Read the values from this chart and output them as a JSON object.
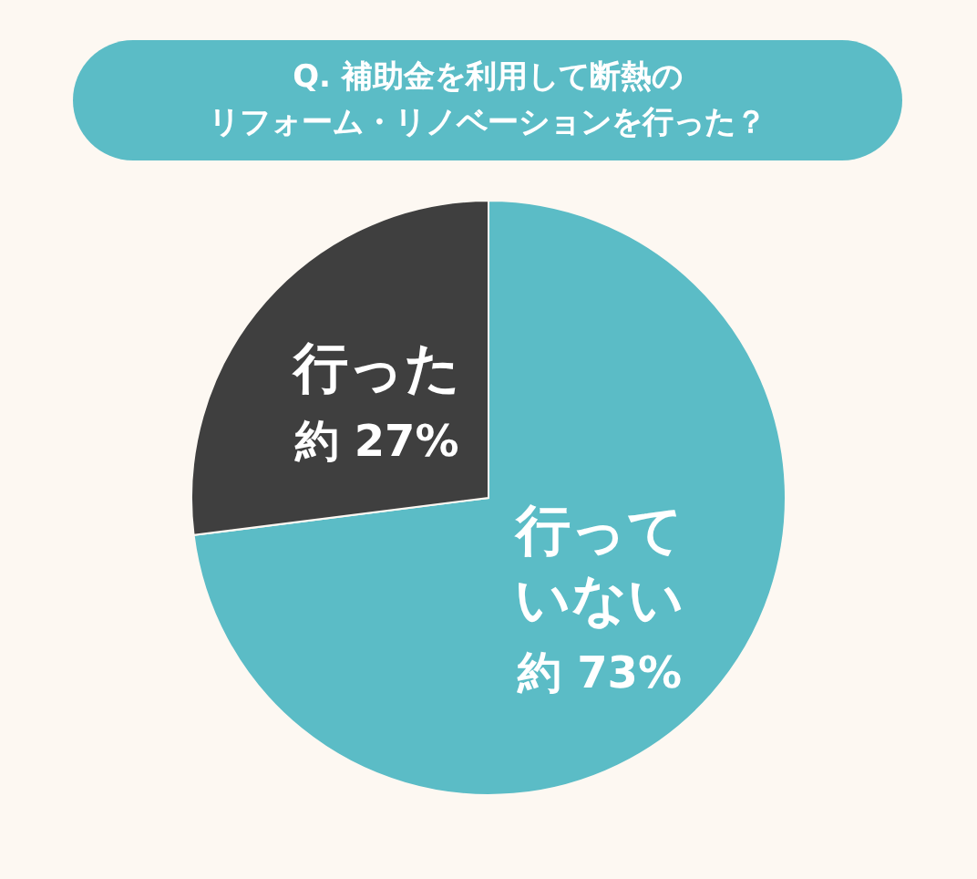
{
  "chart_data": {
    "type": "pie",
    "title": "Q. 補助金を利用して断熱のリフォーム・リノベーションを行った？",
    "categories": [
      "行っていない",
      "行った"
    ],
    "values": [
      73,
      27
    ],
    "colors": [
      "#5bbcc6",
      "#3f3f3f"
    ],
    "value_labels": [
      "約 73%",
      "約 27%"
    ]
  }
}
